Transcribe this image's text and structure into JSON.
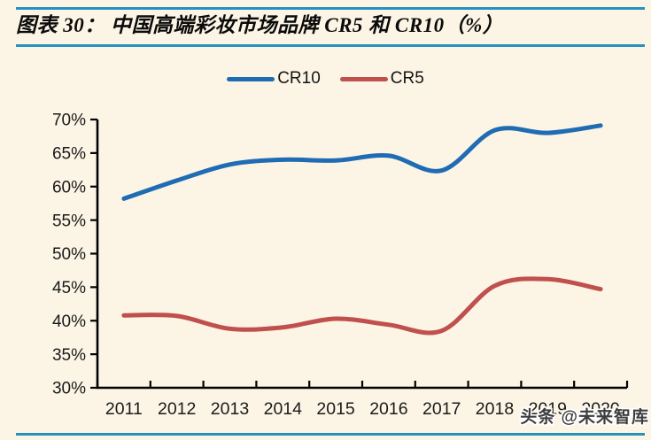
{
  "header": {
    "title": "图表 30：  中国高端彩妆市场品牌 CR5 和 CR10（%）"
  },
  "legend": {
    "items": [
      {
        "label": "CR10",
        "color": "#1F6CB4"
      },
      {
        "label": "CR5",
        "color": "#C0504D"
      }
    ]
  },
  "chart_data": {
    "type": "line",
    "title": "中国高端彩妆市场品牌CR5和CR10（%）",
    "categories": [
      "2011",
      "2012",
      "2013",
      "2014",
      "2015",
      "2016",
      "2017",
      "2018",
      "2019",
      "2020"
    ],
    "series": [
      {
        "name": "CR10",
        "color": "#1F6CB4",
        "values": [
          58.2,
          60.9,
          63.3,
          64.0,
          63.9,
          64.6,
          62.4,
          68.4,
          68.0,
          69.1
        ]
      },
      {
        "name": "CR5",
        "color": "#C0504D",
        "values": [
          40.8,
          40.7,
          38.8,
          39.0,
          40.3,
          39.4,
          38.5,
          45.2,
          46.2,
          44.7
        ]
      }
    ],
    "ylim": [
      30,
      70
    ],
    "ytick_step": 5,
    "ytick_labels": [
      "30%",
      "35%",
      "40%",
      "45%",
      "50%",
      "55%",
      "60%",
      "65%",
      "70%"
    ],
    "xlabel": "",
    "ylabel": "",
    "grid": false,
    "legend_position": "top",
    "axis_color": "#000000",
    "tick_label_color": "#1a1a1a"
  },
  "watermark": {
    "text": "头条 @未来智库"
  },
  "colors": {
    "background": "#FCF5E5",
    "rule": "#2691BE"
  }
}
